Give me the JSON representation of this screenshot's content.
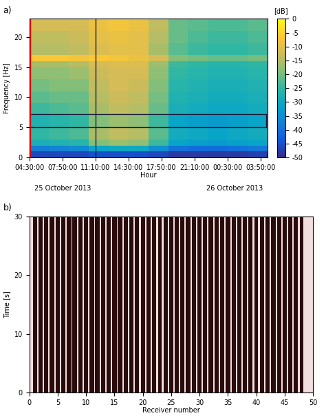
{
  "chart_data": [
    {
      "type": "heatmap",
      "panel_label": "a)",
      "x_label": "Hour",
      "y_label": "Frequency [Hz]",
      "xlim": [
        0,
        1440
      ],
      "xticks": [
        {
          "value": 0,
          "label": "04:30:00"
        },
        {
          "value": 200,
          "label": "07:50:00"
        },
        {
          "value": 400,
          "label": "11:10:00"
        },
        {
          "value": 600,
          "label": "14:30:00"
        },
        {
          "value": 800,
          "label": "17:50:00"
        },
        {
          "value": 1000,
          "label": "21:10:00"
        },
        {
          "value": 1200,
          "label": "00:30:00"
        },
        {
          "value": 1400,
          "label": "03:50:00"
        }
      ],
      "ylim": [
        0,
        23
      ],
      "yticks": [
        0,
        5,
        10,
        15,
        20
      ],
      "date_labels": [
        "25 October 2013",
        "26 October 2013"
      ],
      "highlight_band": [
        5,
        7.2
      ],
      "marker_time": 400,
      "x_edges": [
        0,
        120,
        240,
        360,
        480,
        600,
        720,
        840,
        960,
        1080,
        1200,
        1320,
        1440
      ],
      "y_edges": [
        0,
        1,
        2,
        3,
        5,
        7,
        9,
        11,
        13,
        15,
        16,
        17,
        19,
        21,
        23
      ],
      "cells": [
        [
          -46,
          -46,
          -46,
          -45,
          -45,
          -45,
          -46,
          -48,
          -48,
          -48,
          -48,
          -47
        ],
        [
          -38,
          -37,
          -36,
          -31,
          -30,
          -30,
          -35,
          -40,
          -41,
          -41,
          -40,
          -39
        ],
        [
          -28,
          -27,
          -26,
          -19,
          -17,
          -18,
          -24,
          -31,
          -32,
          -33,
          -32,
          -31
        ],
        [
          -25,
          -24,
          -23,
          -16,
          -14,
          -15,
          -22,
          -29,
          -30,
          -31,
          -30,
          -29
        ],
        [
          -27,
          -26,
          -25,
          -19,
          -17,
          -18,
          -24,
          -31,
          -32,
          -33,
          -32,
          -31
        ],
        [
          -24,
          -23,
          -22,
          -16,
          -14,
          -15,
          -21,
          -28,
          -29,
          -30,
          -30,
          -29
        ],
        [
          -22,
          -21,
          -21,
          -15,
          -13,
          -14,
          -20,
          -27,
          -28,
          -29,
          -29,
          -28
        ],
        [
          -20,
          -19,
          -19,
          -14,
          -12,
          -13,
          -19,
          -26,
          -27,
          -28,
          -28,
          -27
        ],
        [
          -18,
          -18,
          -17,
          -13,
          -12,
          -12,
          -18,
          -25,
          -26,
          -27,
          -27,
          -26
        ],
        [
          -16,
          -16,
          -15,
          -12,
          -11,
          -11,
          -17,
          -24,
          -25,
          -26,
          -26,
          -25
        ],
        [
          -7,
          -7,
          -8,
          -7,
          -8,
          -9,
          -12,
          -19,
          -20,
          -21,
          -21,
          -20
        ],
        [
          -15,
          -15,
          -14,
          -11,
          -10,
          -10,
          -16,
          -22,
          -24,
          -25,
          -25,
          -24
        ],
        [
          -14,
          -14,
          -13,
          -10,
          -9,
          -10,
          -15,
          -21,
          -23,
          -24,
          -24,
          -23
        ],
        [
          -12,
          -12,
          -12,
          -9,
          -8,
          -9,
          -14,
          -21,
          -22,
          -23,
          -23,
          -22
        ]
      ],
      "colorbar": {
        "label": "[dB]",
        "range": [
          -50,
          0
        ],
        "ticks": [
          0,
          -5,
          -10,
          -15,
          -20,
          -25,
          -30,
          -35,
          -40,
          -45,
          -50
        ]
      }
    },
    {
      "type": "wiggle",
      "panel_label": "b)",
      "x_label": "Receiver number",
      "y_label": "Time [s]",
      "xlim": [
        0,
        50
      ],
      "xticks": [
        0,
        5,
        10,
        15,
        20,
        25,
        30,
        35,
        40,
        45,
        50
      ],
      "ylim": [
        0,
        30
      ],
      "yticks": [
        0,
        10,
        20,
        30
      ],
      "receivers": [
        1,
        2,
        3,
        4,
        5,
        6,
        7,
        8,
        9,
        10,
        11,
        12,
        13,
        14,
        15,
        16,
        17,
        18,
        19,
        20,
        21,
        22,
        23,
        24,
        25,
        26,
        27,
        28,
        29,
        30,
        31,
        32,
        33,
        34,
        35,
        36,
        37,
        38,
        39,
        40,
        41,
        42,
        43,
        44,
        45,
        46,
        47,
        48
      ],
      "amplitudes": [
        0.35,
        0.38,
        0.36,
        0.4,
        0.37,
        0.35,
        0.38,
        0.4,
        0.36,
        0.34,
        0.38,
        0.4,
        0.37,
        0.36,
        0.39,
        0.41,
        0.36,
        0.35,
        0.38,
        0.37,
        0.4,
        0.36,
        0.34,
        0.37,
        0.39,
        0.36,
        0.35,
        0.38,
        0.4,
        0.37,
        0.36,
        0.38,
        0.35,
        0.37,
        0.39,
        0.36,
        0.38,
        0.4,
        0.37,
        0.35,
        0.38,
        0.36,
        0.39,
        0.37,
        0.35,
        0.38,
        0.36,
        0.34
      ]
    }
  ]
}
